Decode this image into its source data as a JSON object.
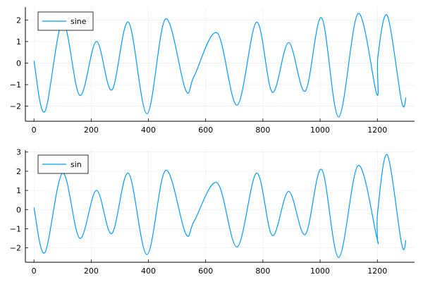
{
  "chart_data": [
    {
      "type": "line",
      "title": "",
      "xlabel": "",
      "ylabel": "",
      "xlim": [
        -30,
        1330
      ],
      "ylim": [
        -2.7,
        2.6
      ],
      "xticks": [
        0,
        200,
        400,
        600,
        800,
        1000,
        1200
      ],
      "xtick_labels": [
        "0",
        "200",
        "400",
        "600",
        "800",
        "1000",
        "1200"
      ],
      "yticks": [
        -2,
        -1,
        0,
        1,
        2
      ],
      "ytick_labels": [
        "−2",
        "−1",
        "0",
        "1",
        "2"
      ],
      "grid": true,
      "legend": "top-left",
      "series": [
        {
          "name": "sine",
          "color": "#009af9",
          "x": [
            0,
            38,
            100,
            160,
            218,
            272,
            330,
            395,
            460,
            530,
            560,
            640,
            710,
            778,
            833,
            890,
            948,
            1005,
            1065,
            1133,
            1198,
            1202,
            1235,
            1285,
            1300
          ],
          "y": [
            0.1,
            -2.25,
            1.9,
            -1.5,
            1.0,
            -1.25,
            1.9,
            -2.35,
            2.05,
            -1.25,
            -0.6,
            1.4,
            -1.95,
            1.9,
            -1.35,
            0.95,
            -1.3,
            2.1,
            -2.5,
            2.3,
            -1.45,
            0.3,
            2.2,
            -1.8,
            -1.6
          ]
        }
      ]
    },
    {
      "type": "line",
      "title": "",
      "xlabel": "",
      "ylabel": "",
      "xlim": [
        -30,
        1330
      ],
      "ylim": [
        -2.75,
        3.1
      ],
      "xticks": [
        0,
        200,
        400,
        600,
        800,
        1000,
        1200
      ],
      "xtick_labels": [
        "0",
        "200",
        "400",
        "600",
        "800",
        "1000",
        "1200"
      ],
      "yticks": [
        -2,
        -1,
        0,
        1,
        2,
        3
      ],
      "ytick_labels": [
        "−2",
        "−1",
        "0",
        "1",
        "2",
        "3"
      ],
      "grid": true,
      "legend": "top-left",
      "series": [
        {
          "name": "sin",
          "color": "#009af9",
          "x": [
            0,
            38,
            100,
            160,
            218,
            272,
            330,
            395,
            460,
            530,
            560,
            640,
            710,
            778,
            833,
            890,
            948,
            1005,
            1065,
            1133,
            1198,
            1200,
            1202,
            1235,
            1285,
            1300
          ],
          "y": [
            0.1,
            -2.25,
            1.9,
            -1.5,
            1.0,
            -1.25,
            1.9,
            -2.35,
            2.05,
            -1.25,
            -0.6,
            1.4,
            -1.95,
            1.9,
            -1.35,
            0.95,
            -1.3,
            2.1,
            -2.5,
            2.3,
            -1.45,
            -1.45,
            0.0,
            2.85,
            -1.8,
            -1.6
          ]
        }
      ]
    }
  ]
}
